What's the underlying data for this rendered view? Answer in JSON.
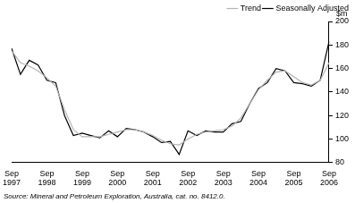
{
  "chart_data": {
    "type": "line",
    "y_label": "$m",
    "source": "Source: Mineral and Petroleum Exploration, Australia, cat. no. 8412.0.",
    "categories": [
      "Sep 1997",
      null,
      null,
      null,
      "Sep 1998",
      null,
      null,
      null,
      "Sep 1999",
      null,
      null,
      null,
      "Sep 2000",
      null,
      null,
      null,
      "Sep 2001",
      null,
      null,
      null,
      "Sep 2002",
      null,
      null,
      null,
      "Sep 2003",
      null,
      null,
      null,
      "Sep 2004",
      null,
      null,
      null,
      "Sep 2005",
      null,
      null,
      null,
      "Sep 2006"
    ],
    "series": [
      {
        "name": "Seasonally Adjusted",
        "color": "#000000",
        "values": [
          177,
          155,
          167,
          163,
          150,
          148,
          120,
          103,
          105,
          103,
          101,
          107,
          102,
          109,
          108,
          106,
          102,
          97,
          98,
          87,
          107,
          103,
          107,
          106,
          106,
          113,
          115,
          130,
          143,
          148,
          160,
          158,
          148,
          147,
          145,
          150,
          183
        ]
      },
      {
        "name": "Trend",
        "color": "#b4b4b4",
        "values": [
          175,
          165,
          162,
          158,
          152,
          145,
          125,
          108,
          102,
          102,
          102,
          104,
          106,
          108,
          108,
          106,
          103,
          99,
          96,
          95,
          100,
          104,
          106,
          107,
          108,
          111,
          118,
          130,
          142,
          150,
          157,
          158,
          153,
          148,
          146,
          150,
          165
        ]
      }
    ],
    "ylim": [
      80,
      200
    ],
    "yticks": [
      80,
      100,
      120,
      140,
      160,
      180,
      200
    ],
    "grid": false,
    "legend": "top-right"
  }
}
